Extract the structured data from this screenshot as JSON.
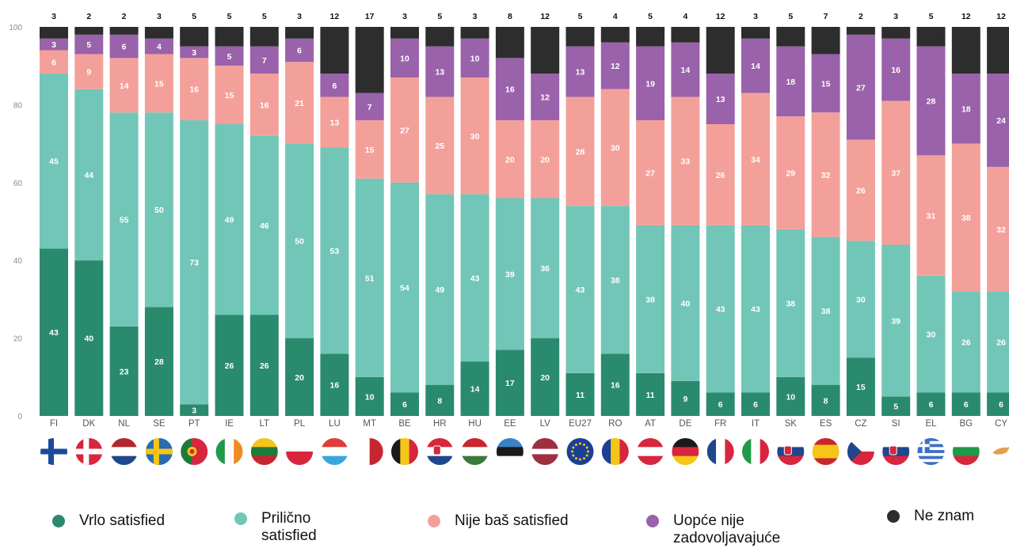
{
  "chart_data": {
    "type": "bar",
    "stacked": true,
    "ylim": [
      0,
      100
    ],
    "yticks": [
      0,
      20,
      40,
      60,
      80,
      100
    ],
    "categories": [
      "FI",
      "DK",
      "NL",
      "SE",
      "PT",
      "IE",
      "LT",
      "PL",
      "LU",
      "MT",
      "BE",
      "HR",
      "HU",
      "EE",
      "LV",
      "EU27",
      "RO",
      "AT",
      "DE",
      "FR",
      "IT",
      "SK",
      "ES",
      "CZ",
      "SI",
      "EL",
      "BG",
      "CY"
    ],
    "series": [
      {
        "name": "Vrlo satisfied",
        "color": "#2a8a6e",
        "values": [
          43,
          40,
          23,
          28,
          3,
          26,
          26,
          20,
          16,
          10,
          6,
          8,
          14,
          17,
          20,
          11,
          16,
          11,
          9,
          6,
          6,
          10,
          8,
          15,
          5,
          6,
          6,
          6
        ]
      },
      {
        "name": "Prilično\nsatisfied",
        "color": "#72c6b7",
        "values": [
          45,
          44,
          55,
          50,
          73,
          49,
          46,
          50,
          53,
          51,
          54,
          49,
          43,
          39,
          36,
          43,
          38,
          38,
          40,
          43,
          43,
          38,
          38,
          30,
          39,
          30,
          26,
          26
        ]
      },
      {
        "name": "Nije baš satisfied",
        "color": "#f4a09a",
        "values": [
          6,
          9,
          14,
          15,
          16,
          15,
          16,
          21,
          13,
          15,
          27,
          25,
          30,
          20,
          20,
          28,
          30,
          27,
          33,
          26,
          34,
          29,
          32,
          26,
          37,
          31,
          38,
          32
        ]
      },
      {
        "name": "Uopće nije\nzadovoljavajuće",
        "color": "#9a62ab",
        "values": [
          3,
          5,
          6,
          4,
          3,
          5,
          7,
          6,
          6,
          7,
          10,
          13,
          10,
          16,
          12,
          13,
          12,
          19,
          14,
          13,
          14,
          18,
          15,
          27,
          16,
          28,
          18,
          24
        ]
      },
      {
        "name": "Ne znam",
        "color": "#2d2d2d",
        "values": [
          3,
          2,
          2,
          3,
          5,
          5,
          5,
          3,
          12,
          17,
          3,
          5,
          3,
          8,
          12,
          5,
          4,
          5,
          4,
          12,
          3,
          5,
          7,
          2,
          3,
          5,
          12,
          12
        ]
      }
    ],
    "flags": {
      "FI": {
        "type": "nordic",
        "bg": "#ffffff",
        "cross": "#1b4a9b"
      },
      "DK": {
        "type": "nordic",
        "bg": "#d7263d",
        "cross": "#ffffff"
      },
      "NL": {
        "type": "hstripes",
        "colors": [
          "#b2262e",
          "#ffffff",
          "#20468b"
        ]
      },
      "SE": {
        "type": "nordic",
        "bg": "#2a6bb0",
        "cross": "#f5c518"
      },
      "PT": {
        "type": "vsplit",
        "colors": [
          "#1f7a3a",
          "#d7263d"
        ],
        "split": 0.42
      },
      "IE": {
        "type": "vstripes",
        "colors": [
          "#1f9a4a",
          "#ffffff",
          "#f08a24"
        ]
      },
      "LT": {
        "type": "hstripes",
        "colors": [
          "#f5c518",
          "#1f7a3a",
          "#c8252e"
        ]
      },
      "PL": {
        "type": "hstripes",
        "colors": [
          "#ffffff",
          "#d7263d"
        ]
      },
      "LU": {
        "type": "hstripes",
        "colors": [
          "#e23b3b",
          "#ffffff",
          "#3aa6dd"
        ]
      },
      "MT": {
        "type": "vstripes",
        "colors": [
          "#ffffff",
          "#c8252e"
        ]
      },
      "BE": {
        "type": "vstripes",
        "colors": [
          "#1a1a1a",
          "#f5c518",
          "#d7263d"
        ]
      },
      "HR": {
        "type": "hstripes",
        "colors": [
          "#d7263d",
          "#ffffff",
          "#20468b"
        ],
        "emblem": true
      },
      "HU": {
        "type": "hstripes",
        "colors": [
          "#c8252e",
          "#ffffff",
          "#3a7a3a"
        ]
      },
      "EE": {
        "type": "hstripes",
        "colors": [
          "#3b82c4",
          "#1a1a1a",
          "#ffffff"
        ]
      },
      "LV": {
        "type": "hstripes",
        "colors": [
          "#9e2f3f",
          "#ffffff",
          "#9e2f3f"
        ],
        "weights": [
          2,
          1,
          2
        ]
      },
      "EU27": {
        "type": "eu",
        "bg": "#1b3f94",
        "star": "#f5c518"
      },
      "RO": {
        "type": "vstripes",
        "colors": [
          "#1b3f94",
          "#f5c518",
          "#d7263d"
        ]
      },
      "AT": {
        "type": "hstripes",
        "colors": [
          "#d7263d",
          "#ffffff",
          "#d7263d"
        ]
      },
      "DE": {
        "type": "hstripes",
        "colors": [
          "#1a1a1a",
          "#d7263d",
          "#f5c518"
        ]
      },
      "FR": {
        "type": "vstripes",
        "colors": [
          "#20468b",
          "#ffffff",
          "#d7263d"
        ]
      },
      "IT": {
        "type": "vstripes",
        "colors": [
          "#1f9a4a",
          "#ffffff",
          "#d7263d"
        ]
      },
      "SK": {
        "type": "hstripes",
        "colors": [
          "#ffffff",
          "#20468b",
          "#d7263d"
        ],
        "emblem": true
      },
      "ES": {
        "type": "hstripes",
        "colors": [
          "#c8252e",
          "#f5c518",
          "#c8252e"
        ],
        "weights": [
          1,
          2,
          1
        ]
      },
      "CZ": {
        "type": "cz",
        "colors": [
          "#ffffff",
          "#d7263d",
          "#20468b"
        ]
      },
      "SI": {
        "type": "hstripes",
        "colors": [
          "#ffffff",
          "#20468b",
          "#d7263d"
        ],
        "emblem": true
      },
      "EL": {
        "type": "greece",
        "blue": "#3d6fc4"
      },
      "BG": {
        "type": "hstripes",
        "colors": [
          "#ffffff",
          "#1f9a4a",
          "#d7263d"
        ]
      },
      "CY": {
        "type": "cyprus",
        "bg": "#ffffff",
        "map": "#e0a050"
      }
    }
  }
}
